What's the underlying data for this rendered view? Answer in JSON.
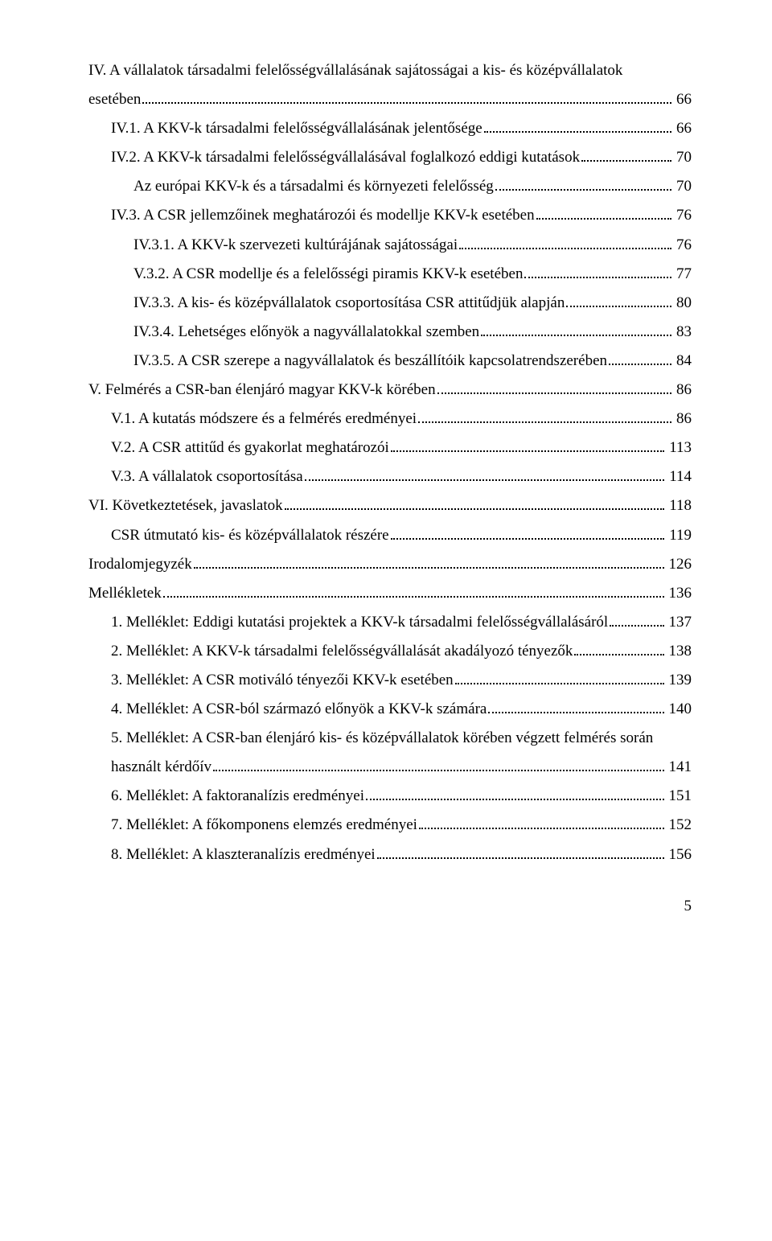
{
  "page": {
    "number": "5",
    "background_color": "#ffffff",
    "text_color": "#000000",
    "font_family": "Times New Roman",
    "base_font_size_pt": 14
  },
  "toc": [
    {
      "indent": 0,
      "label_line1": "IV. A vállalatok társadalmi felelősségvállalásának sajátosságai a kis- és középvállalatok",
      "label": "esetében",
      "page": "66"
    },
    {
      "indent": 1,
      "label": "IV.1. A KKV-k társadalmi felelősségvállalásának jelentősége",
      "page": "66"
    },
    {
      "indent": 1,
      "label": "IV.2. A KKV-k társadalmi felelősségvállalásával foglalkozó eddigi kutatások",
      "page": "70"
    },
    {
      "indent": 2,
      "label": "Az európai KKV-k és a társadalmi és környezeti felelősség",
      "page": "70"
    },
    {
      "indent": 1,
      "label": "IV.3. A CSR jellemzőinek meghatározói és modellje KKV-k esetében",
      "page": "76"
    },
    {
      "indent": 2,
      "label": "IV.3.1. A KKV-k szervezeti kultúrájának sajátosságai",
      "page": "76"
    },
    {
      "indent": 2,
      "label": "V.3.2. A CSR modellje és a felelősségi piramis KKV-k esetében",
      "page": "77"
    },
    {
      "indent": 2,
      "label": "IV.3.3. A kis- és középvállalatok csoportosítása CSR attitűdjük alapján",
      "page": "80"
    },
    {
      "indent": 2,
      "label": "IV.3.4. Lehetséges előnyök a nagyvállalatokkal szemben",
      "page": "83"
    },
    {
      "indent": 2,
      "label": "IV.3.5. A CSR szerepe a nagyvállalatok és beszállítóik kapcsolatrendszerében",
      "page": "84"
    },
    {
      "indent": 0,
      "label": "V. Felmérés a CSR-ban élenjáró magyar KKV-k körében",
      "page": "86"
    },
    {
      "indent": 1,
      "label": "V.1. A kutatás módszere és a felmérés eredményei",
      "page": "86"
    },
    {
      "indent": 1,
      "label": "V.2. A CSR attitűd és gyakorlat meghatározói",
      "page": "113"
    },
    {
      "indent": 1,
      "label": "V.3. A vállalatok csoportosítása",
      "page": "114"
    },
    {
      "indent": 0,
      "label": "VI. Következtetések, javaslatok",
      "page": "118"
    },
    {
      "indent": 1,
      "label": "CSR útmutató kis- és középvállalatok részére",
      "page": "119"
    },
    {
      "indent": 0,
      "label": "Irodalomjegyzék",
      "page": "126"
    },
    {
      "indent": 0,
      "label": "Mellékletek",
      "page": "136"
    },
    {
      "indent": 1,
      "label": "1. Melléklet: Eddigi kutatási projektek a KKV-k társadalmi felelősségvállalásáról",
      "page": "137"
    },
    {
      "indent": 1,
      "label": "2. Melléklet: A KKV-k társadalmi felelősségvállalását akadályozó tényezők",
      "page": "138"
    },
    {
      "indent": 1,
      "label": "3. Melléklet: A CSR motiváló tényezői KKV-k esetében",
      "page": "139"
    },
    {
      "indent": 1,
      "label": "4. Melléklet: A CSR-ból származó előnyök a KKV-k számára",
      "page": "140"
    },
    {
      "indent": 1,
      "label_line1": "5. Melléklet: A CSR-ban élenjáró kis- és középvállalatok körében végzett felmérés során",
      "label": "használt kérdőív",
      "page": "141"
    },
    {
      "indent": 1,
      "label": "6. Melléklet: A faktoranalízis eredményei",
      "page": "151"
    },
    {
      "indent": 1,
      "label": "7. Melléklet: A főkomponens elemzés eredményei",
      "page": "152"
    },
    {
      "indent": 1,
      "label": "8. Melléklet: A klaszteranalízis eredményei",
      "page": "156"
    }
  ]
}
